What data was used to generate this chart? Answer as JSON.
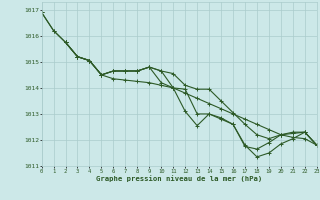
{
  "title": "Graphe pression niveau de la mer (hPa)",
  "background_color": "#cce8e8",
  "grid_color": "#aacccc",
  "line_color": "#2d5a27",
  "xlim": [
    0,
    23
  ],
  "ylim": [
    1011,
    1017.3
  ],
  "yticks": [
    1011,
    1012,
    1013,
    1014,
    1015,
    1016,
    1017
  ],
  "xticks": [
    0,
    1,
    2,
    3,
    4,
    5,
    6,
    7,
    8,
    9,
    10,
    11,
    12,
    13,
    14,
    15,
    16,
    17,
    18,
    19,
    20,
    21,
    22,
    23
  ],
  "line1_x": [
    0,
    1,
    2,
    3,
    4,
    5,
    6,
    7,
    8,
    9,
    10,
    11,
    12,
    13,
    14,
    15,
    16,
    17,
    18,
    19,
    20,
    21,
    22,
    23
  ],
  "line1_y": [
    1016.9,
    1016.2,
    1015.75,
    1015.2,
    1015.05,
    1014.5,
    1014.35,
    1014.3,
    1014.25,
    1014.2,
    1014.1,
    1014.0,
    1013.8,
    1013.6,
    1013.4,
    1013.2,
    1013.0,
    1012.8,
    1012.6,
    1012.4,
    1012.2,
    1012.1,
    1012.05,
    1011.8
  ],
  "line2_x": [
    0,
    1,
    2,
    3,
    4,
    5,
    6,
    7,
    8,
    9,
    10,
    11,
    12,
    13,
    14,
    15,
    16,
    17,
    18,
    19,
    20,
    21,
    22,
    23
  ],
  "line2_y": [
    1016.9,
    1016.2,
    1015.75,
    1015.2,
    1015.05,
    1014.5,
    1014.65,
    1014.65,
    1014.65,
    1014.8,
    1014.65,
    1014.55,
    1014.1,
    1013.95,
    1013.95,
    1013.5,
    1013.05,
    1012.6,
    1012.2,
    1012.05,
    1012.2,
    1012.25,
    1012.3,
    1011.8
  ],
  "line3_x": [
    2,
    3,
    4,
    5,
    6,
    7,
    8,
    9,
    10,
    11,
    12,
    13,
    14,
    15,
    16,
    17,
    18,
    19,
    20,
    21,
    22,
    23
  ],
  "line3_y": [
    1015.75,
    1015.2,
    1015.05,
    1014.5,
    1014.65,
    1014.65,
    1014.65,
    1014.8,
    1014.2,
    1014.0,
    1013.1,
    1012.55,
    1013.0,
    1012.85,
    1012.6,
    1011.8,
    1011.35,
    1011.5,
    1011.85,
    1012.05,
    1012.3,
    1011.8
  ],
  "line4_x": [
    2,
    3,
    4,
    5,
    6,
    7,
    8,
    9,
    10,
    11,
    12,
    13,
    14,
    15,
    16,
    17,
    18,
    19,
    20,
    21,
    22,
    23
  ],
  "line4_y": [
    1015.75,
    1015.2,
    1015.05,
    1014.5,
    1014.65,
    1014.65,
    1014.65,
    1014.8,
    1014.65,
    1014.0,
    1013.95,
    1013.0,
    1013.0,
    1012.8,
    1012.6,
    1011.75,
    1011.65,
    1011.9,
    1012.2,
    1012.3,
    1012.3,
    1011.8
  ]
}
